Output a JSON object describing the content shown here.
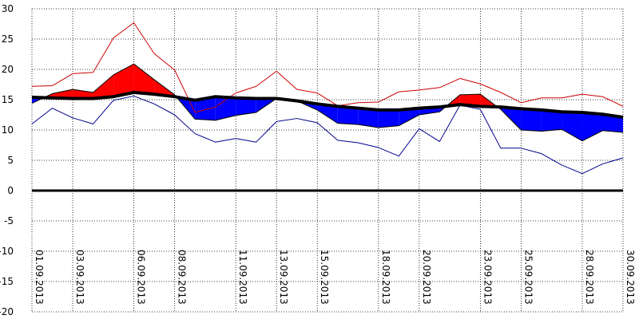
{
  "chart_data": {
    "type": "area",
    "title": "",
    "xlabel": "",
    "ylabel": "",
    "ylim": [
      -20,
      30
    ],
    "yticks": [
      30,
      25,
      20,
      15,
      10,
      5,
      0,
      -5,
      -10,
      -15,
      -20
    ],
    "grid": true,
    "legend": "none",
    "x": [
      "01.09.2013",
      "02.09.2013",
      "03.09.2013",
      "04.09.2013",
      "05.09.2013",
      "06.09.2013",
      "07.09.2013",
      "08.09.2013",
      "09.09.2013",
      "10.09.2013",
      "11.09.2013",
      "12.09.2013",
      "13.09.2013",
      "14.09.2013",
      "15.09.2013",
      "16.09.2013",
      "17.09.2013",
      "18.09.2013",
      "19.09.2013",
      "20.09.2013",
      "21.09.2013",
      "22.09.2013",
      "23.09.2013",
      "24.09.2013",
      "25.09.2013",
      "26.09.2013",
      "27.09.2013",
      "28.09.2013",
      "29.09.2013",
      "30.09.2013"
    ],
    "x_tick_labels": [
      "01.09.2013",
      "03.09.2013",
      "06.09.2013",
      "08.09.2013",
      "11.09.2013",
      "13.09.2013",
      "15.09.2013",
      "18.09.2013",
      "20.09.2013",
      "23.09.2013",
      "25.09.2013",
      "28.09.2013",
      "30.09.2013"
    ],
    "series": [
      {
        "role": "max",
        "color": "#cc0000",
        "values": [
          17.2,
          17.3,
          19.3,
          19.5,
          25.2,
          27.7,
          22.6,
          19.9,
          12.9,
          13.8,
          16.1,
          17.2,
          19.7,
          16.7,
          16.1,
          14.0,
          14.5,
          14.6,
          16.3,
          16.6,
          17.0,
          18.5,
          17.6,
          16.2,
          14.5,
          15.3,
          15.3,
          15.9,
          15.5,
          13.9
        ]
      },
      {
        "role": "mean",
        "color": "#000000",
        "values": [
          14.4,
          16.0,
          16.7,
          16.2,
          19.1,
          20.9,
          18.3,
          15.8,
          11.8,
          11.6,
          12.4,
          12.9,
          15.2,
          14.8,
          13.3,
          11.1,
          10.9,
          10.4,
          10.7,
          12.5,
          13.0,
          15.8,
          15.9,
          13.4,
          10.0,
          9.8,
          10.1,
          8.2,
          9.9,
          9.6
        ]
      },
      {
        "role": "min",
        "color": "#00008b",
        "values": [
          11.0,
          13.6,
          12.0,
          11.0,
          14.9,
          15.6,
          14.3,
          12.5,
          9.4,
          8.0,
          8.6,
          8.0,
          11.4,
          11.9,
          11.2,
          8.3,
          7.9,
          7.1,
          5.7,
          10.2,
          8.1,
          14.1,
          13.4,
          7.0,
          7.0,
          6.1,
          4.2,
          2.8,
          4.4,
          5.4
        ]
      },
      {
        "role": "norm",
        "color": "#000000",
        "values": [
          15.4,
          15.3,
          15.2,
          15.2,
          15.5,
          16.2,
          15.9,
          15.5,
          14.9,
          15.5,
          15.3,
          15.2,
          15.2,
          14.8,
          14.3,
          13.9,
          13.6,
          13.3,
          13.3,
          13.6,
          13.8,
          14.2,
          13.9,
          13.8,
          13.5,
          13.3,
          13.0,
          12.9,
          12.6,
          12.1
        ]
      }
    ],
    "fill_above_norm_color": "#ff0000",
    "fill_below_norm_color": "#0000ff"
  }
}
